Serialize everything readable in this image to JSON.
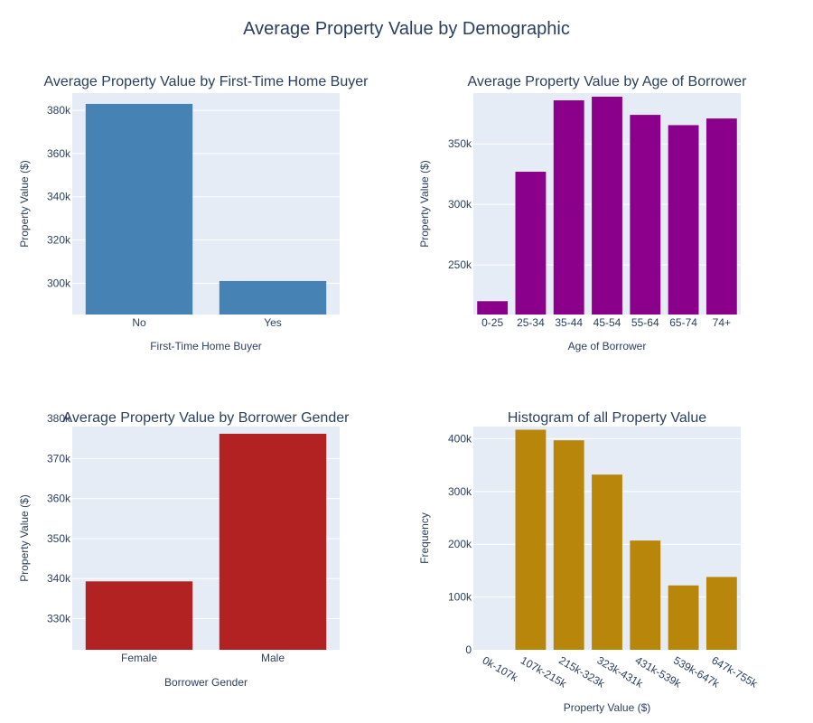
{
  "figure": {
    "title": "Average Property Value by Demographic"
  },
  "chart_data": [
    {
      "id": "first_time",
      "type": "bar",
      "title": "Average Property Value by First-Time Home Buyer",
      "xlabel": "First-Time Home Buyer",
      "ylabel": "Property Value ($)",
      "categories": [
        "No",
        "Yes"
      ],
      "values": [
        383000,
        301000
      ],
      "ylim": [
        285500,
        388000
      ],
      "yticks": [
        300000,
        320000,
        340000,
        360000,
        380000
      ],
      "ytick_labels": [
        "300k",
        "320k",
        "340k",
        "360k",
        "380k"
      ],
      "color": "#4682b4",
      "grid": true
    },
    {
      "id": "age",
      "type": "bar",
      "title": "Average Property Value by Age of Borrower",
      "xlabel": "Age of Borrower",
      "ylabel": "Property Value ($)",
      "categories": [
        "0-25",
        "25-34",
        "35-44",
        "45-54",
        "55-64",
        "65-74",
        "74+"
      ],
      "values": [
        220000,
        327000,
        386000,
        389000,
        374000,
        365500,
        371000
      ],
      "ylim": [
        209000,
        392000
      ],
      "yticks": [
        250000,
        300000,
        350000
      ],
      "ytick_labels": [
        "250k",
        "300k",
        "350k"
      ],
      "color": "#8b008b",
      "grid": true
    },
    {
      "id": "gender",
      "type": "bar",
      "title": "Average Property Value by Borrower Gender",
      "xlabel": "Borrower Gender",
      "ylabel": "Property Value ($)",
      "categories": [
        "Female",
        "Male"
      ],
      "values": [
        339300,
        376200
      ],
      "ylim": [
        322200,
        378000
      ],
      "yticks": [
        330000,
        340000,
        350000,
        360000,
        370000,
        380000
      ],
      "ytick_labels": [
        "330k",
        "340k",
        "350k",
        "360k",
        "370k",
        "380k"
      ],
      "color": "#b22222",
      "grid": true
    },
    {
      "id": "histogram",
      "type": "bar",
      "title": "Histogram of all Property Value",
      "xlabel": "Property Value ($)",
      "ylabel": "Frequency",
      "categories": [
        "0k-107k",
        "107k-215k",
        "215k-323k",
        "323k-431k",
        "431k-539k",
        "539k-647k",
        "647k-755k"
      ],
      "values": [
        0,
        417000,
        397000,
        332000,
        207000,
        122000,
        138000
      ],
      "ylim": [
        0,
        423000
      ],
      "yticks": [
        0,
        100000,
        200000,
        300000,
        400000
      ],
      "ytick_labels": [
        "0",
        "100k",
        "200k",
        "300k",
        "400k"
      ],
      "color": "#b8860b",
      "grid": true,
      "tick_angle": 30
    }
  ]
}
